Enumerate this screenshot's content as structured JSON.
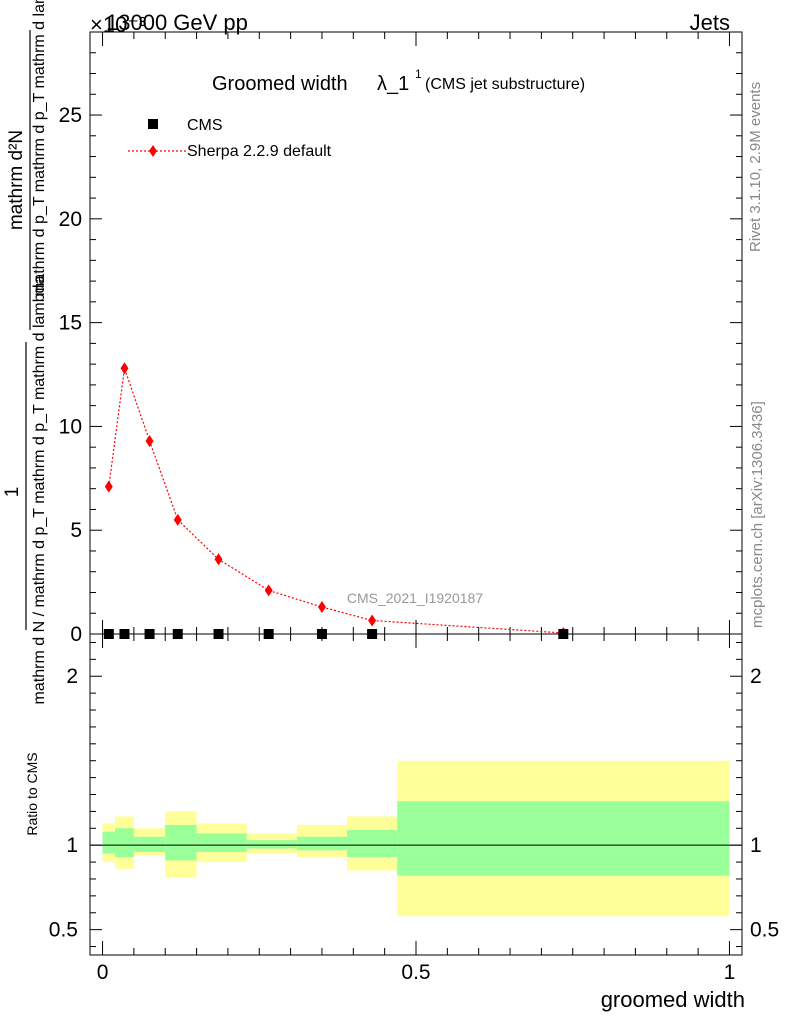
{
  "header": {
    "left": "13000 GeV pp",
    "right": "Jets",
    "exponent_label": "×10⁻³"
  },
  "title": {
    "main": "Groomed width ",
    "lambda": "λ_1",
    "superscript": "1",
    "sub": "(CMS jet substructure)"
  },
  "legend": {
    "entries": [
      {
        "label": "CMS",
        "color": "#000000",
        "marker": "square"
      },
      {
        "label": "Sherpa 2.2.9 default",
        "color": "#ff0000",
        "marker": "diamond"
      }
    ]
  },
  "watermark": "CMS_2021_I1920187",
  "side_labels": {
    "rivet": "Rivet 3.1.10,  2.9M events",
    "mcplots": "mcplots.cern.ch [arXiv:1306.3436]"
  },
  "axis_labels": {
    "y_top_numerator": "mathrm d²N",
    "y_one": "1",
    "y_top_denominator": "mathrm d p_T mathrm d p_T mathrm d lambda",
    "y_denominator": "mathrm d N / mathrm d p_T mathrm d p_T mathrm d lambda",
    "y_ratio": "Ratio to CMS",
    "x": "groomed width"
  },
  "chart_data": [
    {
      "type": "line",
      "panel": "main",
      "x": [
        0.01,
        0.035,
        0.075,
        0.12,
        0.185,
        0.265,
        0.35,
        0.43,
        0.735
      ],
      "series": [
        {
          "name": "CMS",
          "values": [
            0.0,
            0.0,
            0.0,
            0.0,
            0.0,
            0.0,
            0.0,
            0.0,
            0.0
          ]
        },
        {
          "name": "Sherpa 2.2.9 default",
          "values": [
            7.1,
            12.8,
            9.3,
            5.5,
            3.6,
            2.1,
            1.3,
            0.65,
            0.05
          ]
        }
      ],
      "ylim": [
        0,
        29
      ],
      "xlim": [
        -0.02,
        1.02
      ],
      "yticks": [
        0,
        5,
        10,
        15,
        20,
        25
      ],
      "ytick_labels": [
        "0",
        "5",
        "10",
        "15",
        "20",
        "25"
      ],
      "y_scale_factor": "×10⁻³"
    },
    {
      "type": "area",
      "panel": "ratio",
      "bins": [
        {
          "lo": 0.0,
          "hi": 0.02,
          "inner": [
            0.95,
            1.08
          ],
          "outer": [
            0.9,
            1.13
          ]
        },
        {
          "lo": 0.02,
          "hi": 0.05,
          "inner": [
            0.93,
            1.1
          ],
          "outer": [
            0.86,
            1.17
          ]
        },
        {
          "lo": 0.05,
          "hi": 0.1,
          "inner": [
            0.96,
            1.05
          ],
          "outer": [
            0.94,
            1.1
          ]
        },
        {
          "lo": 0.1,
          "hi": 0.15,
          "inner": [
            0.91,
            1.12
          ],
          "outer": [
            0.81,
            1.2
          ]
        },
        {
          "lo": 0.15,
          "hi": 0.23,
          "inner": [
            0.96,
            1.07
          ],
          "outer": [
            0.9,
            1.13
          ]
        },
        {
          "lo": 0.23,
          "hi": 0.31,
          "inner": [
            0.98,
            1.03
          ],
          "outer": [
            0.95,
            1.07
          ]
        },
        {
          "lo": 0.31,
          "hi": 0.39,
          "inner": [
            0.97,
            1.05
          ],
          "outer": [
            0.93,
            1.12
          ]
        },
        {
          "lo": 0.39,
          "hi": 0.47,
          "inner": [
            0.93,
            1.09
          ],
          "outer": [
            0.85,
            1.17
          ]
        },
        {
          "lo": 0.47,
          "hi": 1.0,
          "inner": [
            0.82,
            1.26
          ],
          "outer": [
            0.58,
            1.5
          ]
        }
      ],
      "inner_color": "#99ff99",
      "outer_color": "#ffff99",
      "reference": 1.0,
      "ylim": [
        0.35,
        2.25
      ],
      "yticks": [
        0.5,
        1,
        2
      ],
      "ytick_labels": [
        "0.5",
        "1",
        "2"
      ],
      "xticks": [
        0,
        0.5,
        1
      ],
      "xtick_labels": [
        "0",
        "0.5",
        "1"
      ]
    }
  ]
}
